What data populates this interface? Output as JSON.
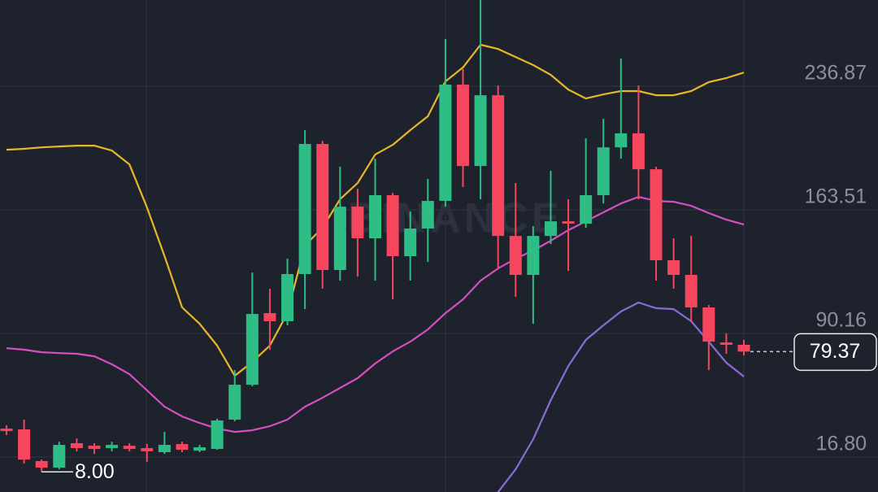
{
  "chart_data": {
    "type": "candlestick",
    "watermark": "BINANCE",
    "ylim": [
      -3.95,
      288.03
    ],
    "yticks": [
      {
        "value": 16.8,
        "label": "16.80"
      },
      90.16,
      163.51,
      236.87
    ],
    "grid": true,
    "up_color": "#2ebd85",
    "down_color": "#f6465d",
    "open": [
      33.7,
      33.2,
      14.4,
      10.5,
      25.0,
      23.5,
      22.1,
      23.5,
      22.1,
      19.7,
      24.5,
      20.6,
      21.6,
      39.0,
      59.7,
      102.2,
      97.4,
      125.4,
      202.6,
      127.8,
      165.4,
      146.6,
      172.2,
      136.0,
      152.4,
      168.8,
      237.8,
      189.5,
      231.5,
      148.0,
      124.9,
      148.0,
      156.7,
      155.3,
      172.2,
      200.6,
      208.9,
      187.6,
      133.6,
      124.9,
      105.6,
      84.8,
      83.4
    ],
    "high": [
      35.6,
      39.0,
      15.3,
      25.9,
      27.9,
      25.0,
      25.9,
      25.0,
      24.5,
      31.7,
      25.9,
      24.0,
      39.5,
      68.4,
      126.3,
      116.7,
      134.5,
      210.8,
      204.5,
      189.1,
      176.0,
      193.9,
      173.6,
      162.5,
      181.8,
      264.8,
      247.0,
      288.0,
      237.3,
      179.4,
      153.8,
      186.7,
      169.8,
      206.0,
      217.5,
      253.3,
      237.3,
      189.1,
      146.6,
      148.0,
      107.0,
      90.1,
      86.3
    ],
    "low": [
      29.8,
      12.9,
      8.0,
      9.5,
      20.2,
      18.7,
      20.2,
      20.2,
      13.9,
      18.7,
      19.7,
      19.7,
      21.1,
      38.0,
      58.8,
      80.5,
      95.0,
      104.6,
      116.7,
      121.5,
      123.9,
      121.5,
      110.4,
      121.5,
      132.6,
      165.4,
      177.0,
      169.8,
      128.7,
      111.9,
      95.9,
      143.2,
      127.3,
      152.9,
      167.3,
      193.9,
      169.8,
      121.5,
      116.7,
      97.4,
      68.4,
      78.1,
      77.1
    ],
    "close": [
      32.2,
      15.3,
      10.5,
      24.0,
      22.1,
      21.6,
      24.0,
      21.6,
      20.2,
      24.0,
      21.1,
      22.6,
      38.5,
      59.7,
      101.7,
      97.4,
      125.4,
      202.6,
      127.8,
      165.4,
      146.6,
      172.2,
      136.0,
      152.4,
      168.8,
      237.8,
      189.5,
      231.5,
      148.0,
      124.9,
      148.0,
      156.7,
      155.3,
      172.2,
      200.6,
      208.9,
      187.6,
      133.6,
      124.9,
      105.6,
      85.3,
      83.4,
      79.37
    ],
    "series": [
      {
        "color": "#e8b62a",
        "values": [
          199.2,
          199.7,
          200.6,
          201.1,
          201.6,
          201.6,
          198.7,
          190.5,
          164.9,
          136.0,
          105.6,
          95.9,
          82.9,
          65.0,
          73.2,
          82.9,
          102.2,
          142.3,
          152.9,
          169.8,
          179.4,
          196.3,
          202.1,
          210.8,
          219.0,
          239.7,
          248.0,
          261.5,
          259.0,
          254.2,
          249.4,
          243.6,
          234.9,
          229.6,
          232.0,
          234.0,
          234.0,
          231.5,
          231.5,
          234.0,
          239.3,
          241.7,
          245.0
        ]
      },
      {
        "color": "#d44fc4",
        "values": [
          81.4,
          80.5,
          79.0,
          78.5,
          78.1,
          76.6,
          71.8,
          66.0,
          56.4,
          46.7,
          40.9,
          37.0,
          33.7,
          31.7,
          32.7,
          35.1,
          39.0,
          46.7,
          52.0,
          57.8,
          63.6,
          72.3,
          79.5,
          85.3,
          92.5,
          102.2,
          110.4,
          121.5,
          128.7,
          134.5,
          139.4,
          145.2,
          151.4,
          156.7,
          162.0,
          167.3,
          171.2,
          168.8,
          168.3,
          165.9,
          161.6,
          157.7,
          154.8
        ]
      },
      {
        "color": "#8c6bd6",
        "values": [
          null,
          null,
          null,
          null,
          null,
          null,
          null,
          null,
          null,
          null,
          null,
          null,
          null,
          null,
          null,
          null,
          null,
          null,
          null,
          null,
          null,
          null,
          null,
          null,
          null,
          null,
          null,
          null,
          -4.0,
          9.5,
          27.4,
          50.6,
          70.8,
          86.3,
          95.0,
          103.2,
          108.5,
          105.1,
          104.6,
          97.4,
          85.3,
          72.8,
          64.6
        ]
      }
    ],
    "last_price": 79.37,
    "low_marker": {
      "value": 8,
      "label": "8.00"
    }
  }
}
